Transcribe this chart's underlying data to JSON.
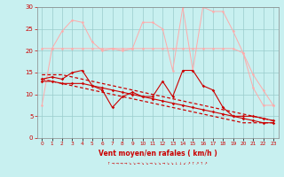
{
  "x": [
    0,
    1,
    2,
    3,
    4,
    5,
    6,
    7,
    8,
    9,
    10,
    11,
    12,
    13,
    14,
    15,
    16,
    17,
    18,
    19,
    20,
    21,
    22,
    23
  ],
  "line1_y": [
    7.5,
    20.5,
    24.5,
    27.0,
    26.5,
    22.0,
    20.0,
    20.5,
    20.0,
    20.5,
    26.5,
    26.5,
    25.0,
    15.5,
    30.0,
    15.5,
    30.0,
    29.0,
    29.0,
    24.5,
    19.5,
    11.5,
    7.5,
    7.5
  ],
  "line1_color": "#ffaaaa",
  "line2_y": [
    20.5,
    20.5,
    20.5,
    20.5,
    20.5,
    20.5,
    20.5,
    20.5,
    20.5,
    20.5,
    20.5,
    20.5,
    20.5,
    20.5,
    20.5,
    20.5,
    20.5,
    20.5,
    20.5,
    20.5,
    19.5,
    14.5,
    11.0,
    7.5
  ],
  "line2_color": "#ffaaaa",
  "line3_y": [
    13.5,
    14.0,
    13.5,
    15.0,
    15.5,
    12.0,
    11.0,
    7.0,
    9.5,
    10.5,
    9.5,
    9.5,
    13.0,
    9.5,
    15.5,
    15.5,
    12.0,
    11.0,
    7.0,
    5.0,
    5.0,
    5.0,
    4.5,
    4.0
  ],
  "line3_color": "#cc0000",
  "line4_y": [
    13.5,
    13.0,
    12.5,
    12.0,
    11.5,
    11.0,
    10.5,
    10.0,
    9.5,
    9.0,
    8.5,
    8.0,
    7.5,
    7.0,
    6.5,
    6.0,
    5.5,
    5.0,
    4.5,
    4.0,
    3.5,
    3.5,
    3.5,
    3.5
  ],
  "line4_color": "#cc0000",
  "line5_y": [
    14.5,
    14.5,
    14.5,
    14.0,
    13.5,
    13.0,
    12.5,
    12.0,
    11.5,
    11.0,
    10.5,
    10.0,
    9.5,
    9.0,
    8.5,
    8.0,
    7.5,
    7.0,
    6.5,
    6.0,
    5.5,
    5.0,
    4.5,
    4.0
  ],
  "line5_color": "#cc0000",
  "line6_y": [
    13.0,
    13.0,
    12.5,
    12.5,
    12.5,
    12.0,
    11.5,
    11.0,
    10.5,
    10.0,
    9.5,
    9.0,
    8.5,
    8.0,
    7.5,
    7.0,
    6.5,
    6.0,
    5.5,
    5.0,
    4.5,
    4.0,
    3.5,
    3.5
  ],
  "line6_color": "#cc0000",
  "bg_color": "#c8f0f0",
  "grid_color": "#99cccc",
  "xlabel": "Vent moyen/en rafales ( km/h )",
  "ylim": [
    0,
    30
  ],
  "yticks": [
    0,
    5,
    10,
    15,
    20,
    25,
    30
  ],
  "xtick_labels": [
    "0",
    "1",
    "2",
    "3",
    "4",
    "5",
    "6",
    "7",
    "8",
    "9",
    "10",
    "11",
    "12",
    "13",
    "14",
    "15",
    "16",
    "17",
    "18",
    "19",
    "20",
    "21",
    "22",
    "23"
  ]
}
